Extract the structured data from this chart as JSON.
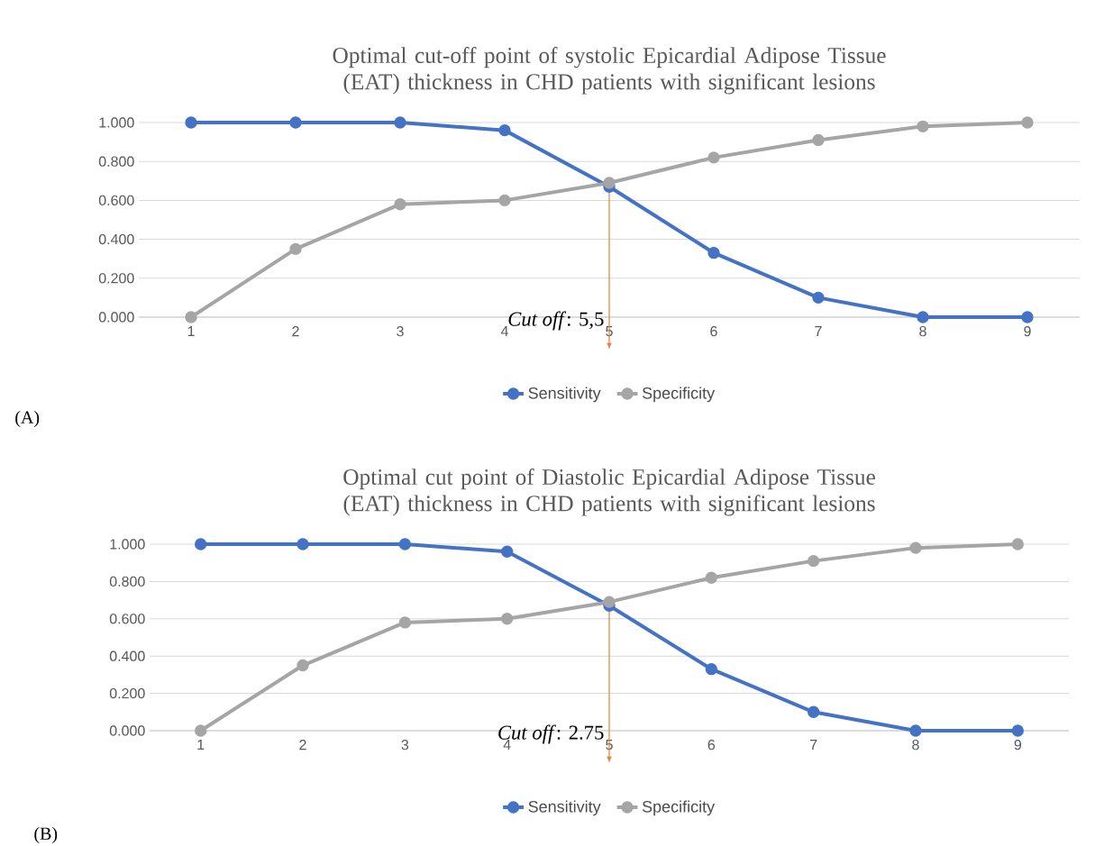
{
  "chart_data": [
    {
      "type": "line",
      "title": "Optimal cut-off point of systolic Epicardial Adipose Tissue (EAT) thickness in CHD patients with significant lesions",
      "categories": [
        "1",
        "2",
        "3",
        "4",
        "5",
        "6",
        "7",
        "8",
        "9"
      ],
      "series": [
        {
          "name": "Sensitivity",
          "color": "#4472c4",
          "values": [
            1.0,
            1.0,
            1.0,
            0.96,
            0.67,
            0.33,
            0.1,
            0.0,
            0.0
          ]
        },
        {
          "name": "Specificity",
          "color": "#a5a5a5",
          "values": [
            0.0,
            0.35,
            0.58,
            0.6,
            0.69,
            0.82,
            0.91,
            0.98,
            1.0
          ]
        }
      ],
      "ylim": [
        0,
        1
      ],
      "yticks": [
        {
          "value": 0,
          "label": "0.000"
        },
        {
          "value": 0.2,
          "label": "0.200"
        },
        {
          "value": 0.4,
          "label": "0.400"
        },
        {
          "value": 0.6,
          "label": "0.600"
        },
        {
          "value": 0.8,
          "label": "0.800"
        },
        {
          "value": 1,
          "label": "1.000"
        }
      ],
      "grid": "y",
      "legend": "bottom",
      "marker": "circle",
      "line_style": "solid",
      "annotations": [
        {
          "text": "*Cut off*: 5,5",
          "x": "5",
          "y": 0.68
        },
        "(A)"
      ]
    },
    {
      "type": "line",
      "title": "Optimal cut point of Diastolic Epicardial Adipose Tissue (EAT) thickness in CHD patients with significant lesions",
      "categories": [
        "1",
        "2",
        "3",
        "4",
        "5",
        "6",
        "7",
        "8",
        "9"
      ],
      "series": [
        {
          "name": "Sensitivity",
          "color": "#4472c4",
          "values": [
            1.0,
            1.0,
            1.0,
            0.96,
            0.67,
            0.33,
            0.1,
            0.0,
            0.0
          ]
        },
        {
          "name": "Specificity",
          "color": "#a5a5a5",
          "values": [
            0.0,
            0.35,
            0.58,
            0.6,
            0.69,
            0.82,
            0.91,
            0.98,
            1.0
          ]
        }
      ],
      "ylim": [
        0,
        1
      ],
      "yticks": [
        {
          "value": 0,
          "label": "0.000"
        },
        {
          "value": 0.2,
          "label": "0.200"
        },
        {
          "value": 0.4,
          "label": "0.400"
        },
        {
          "value": 0.6,
          "label": "0.600"
        },
        {
          "value": 0.8,
          "label": "0.800"
        },
        {
          "value": 1,
          "label": "1.000"
        }
      ],
      "grid": "y",
      "legend": "bottom",
      "marker": "circle",
      "line_style": "solid",
      "annotations": [
        {
          "text": "*Cut off*: 2.75",
          "x": "5",
          "y": 0.68
        },
        "(B)"
      ]
    }
  ]
}
